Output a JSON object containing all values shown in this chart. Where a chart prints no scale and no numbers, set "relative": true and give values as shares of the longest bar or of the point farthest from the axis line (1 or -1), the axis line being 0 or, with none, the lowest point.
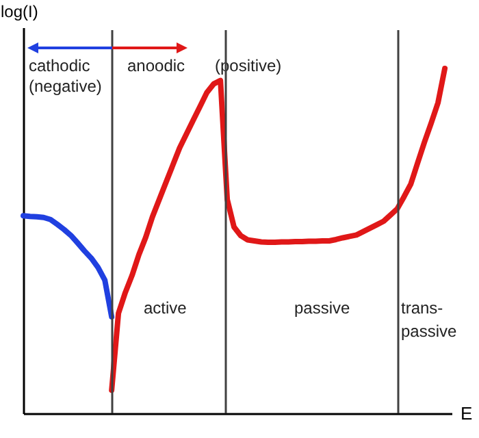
{
  "chart_data": {
    "type": "line",
    "relative": true,
    "xlabel": "E",
    "ylabel": "log(I)",
    "line_style": "solid",
    "categories": [
      null,
      null,
      null,
      null,
      null,
      null,
      null,
      null,
      null,
      null,
      null,
      null,
      null,
      null,
      null,
      null,
      null,
      null,
      null,
      null,
      null,
      null,
      null,
      null,
      null,
      null,
      null,
      null,
      null,
      null,
      null,
      null,
      null,
      null,
      null,
      null,
      null,
      null,
      null,
      null,
      null,
      null,
      null,
      null,
      null,
      null,
      null,
      null,
      null,
      null,
      null,
      null,
      null,
      null,
      null,
      null,
      null,
      null,
      null,
      null,
      null,
      null,
      null,
      null
    ],
    "series": [
      {
        "color": "#2040e0",
        "values": [
          0.573,
          0.571,
          0.57,
          0.568,
          0.562,
          0.548,
          0.533,
          0.516,
          0.494,
          0.471,
          0.45,
          0.423,
          0.386,
          0.28,
          null,
          null,
          null,
          null,
          null,
          null,
          null,
          null,
          null,
          null,
          null,
          null,
          null,
          null,
          null,
          null,
          null,
          null,
          null,
          null,
          null,
          null,
          null,
          null,
          null,
          null,
          null,
          null,
          null,
          null,
          null,
          null,
          null,
          null,
          null,
          null,
          null,
          null,
          null,
          null,
          null,
          null,
          null,
          null,
          null,
          null,
          null,
          null,
          null,
          null
        ]
      },
      {
        "color": "#e01818",
        "values": [
          null,
          null,
          null,
          null,
          null,
          null,
          null,
          null,
          null,
          null,
          null,
          null,
          null,
          0.067,
          0.29,
          0.35,
          0.4,
          0.46,
          0.51,
          0.57,
          0.62,
          0.67,
          0.72,
          0.77,
          0.81,
          0.85,
          0.89,
          0.93,
          0.955,
          0.965,
          0.62,
          0.54,
          0.515,
          0.503,
          0.5,
          0.497,
          0.496,
          0.496,
          0.497,
          0.497,
          0.498,
          0.498,
          0.499,
          0.499,
          0.5,
          0.5,
          0.504,
          0.509,
          0.513,
          0.517,
          0.527,
          0.537,
          0.547,
          0.557,
          0.575,
          0.593,
          0.628,
          0.665,
          0.726,
          0.786,
          0.842,
          0.901,
          1,
          null
        ]
      }
    ],
    "annotations": [
      "cathodic",
      "(negative)",
      "anoodic",
      "(positive)",
      "active",
      "passive",
      "trans-passive"
    ]
  }
}
